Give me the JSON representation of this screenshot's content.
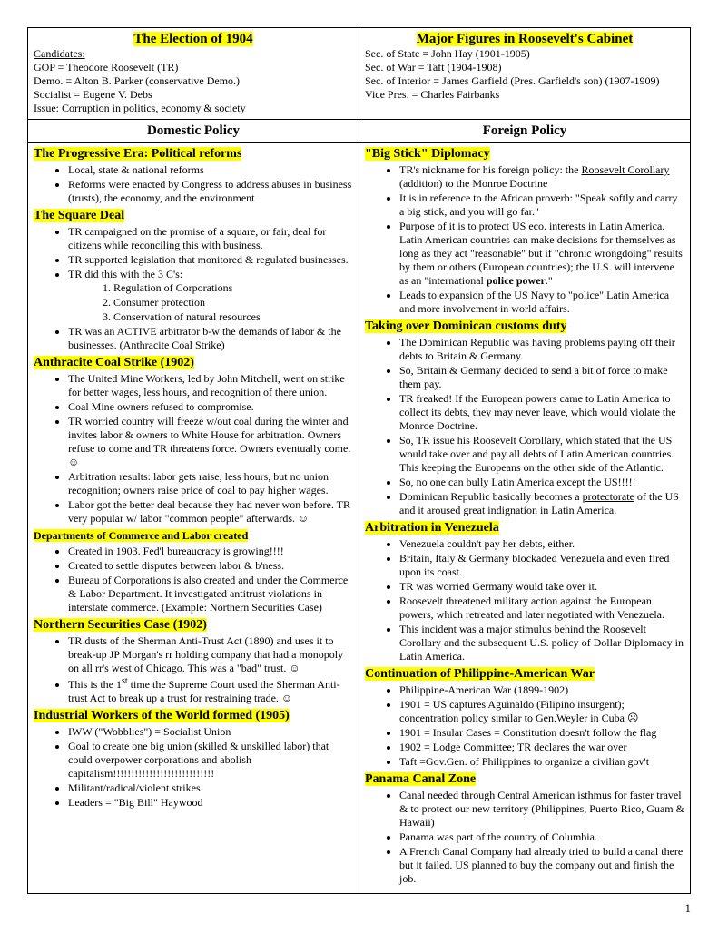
{
  "topLeft": {
    "title": "The Election of 1904",
    "candidatesLabel": "Candidates:",
    "gop": "GOP = Theodore Roosevelt (TR)",
    "demo": "Demo. = Alton B. Parker (conservative Demo.)",
    "socialist": "Socialist = Eugene V. Debs",
    "issueLabel": "Issue:",
    "issueText": " Corruption in politics, economy & society"
  },
  "topRight": {
    "title": "Major Figures in Roosevelt's Cabinet",
    "l1": "Sec. of State = John Hay (1901-1905)",
    "l2": "Sec. of War = Taft (1904-1908)",
    "l3": "Sec. of Interior = James Garfield (Pres. Garfield's son) (1907-1909)",
    "l4": "Vice Pres. = Charles Fairbanks"
  },
  "domesticTitle": "Domestic Policy",
  "foreignTitle": "Foreign Policy",
  "domestic": {
    "progressive": {
      "title": "The Progressive Era: Political reforms",
      "b1": "Local, state & national reforms",
      "b2": "Reforms were enacted by Congress to address abuses in business (trusts), the economy, and the environment"
    },
    "squareDeal": {
      "title": "The Square Deal",
      "b1": "TR campaigned on the promise of a square, or fair, deal for citizens while reconciling this with business.",
      "b2": "TR supported legislation that monitored & regulated businesses.",
      "b3": "TR did this with the 3 C's:",
      "c1": "Regulation of Corporations",
      "c2": "Consumer protection",
      "c3": "Conservation of natural resources",
      "b4": "TR was an ACTIVE arbitrator b-w the demands of labor & the businesses. (Anthracite Coal Strike)"
    },
    "coalStrike": {
      "title": "Anthracite Coal Strike (1902)",
      "b1": "The United Mine Workers, led by John Mitchell, went on strike for better wages, less hours, and recognition of there union.",
      "b2": "Coal Mine owners refused to compromise.",
      "b3": "TR worried country will freeze w/out coal during the winter and invites labor & owners to White House for arbitration.  Owners refuse to come and TR threatens force.  Owners eventually come. ☺",
      "b4": "Arbitration results: labor gets raise, less hours, but no union recognition; owners raise price of coal to pay higher wages.",
      "b5": "Labor got the better deal because they had never won before. TR very popular w/ labor \"common people\" afterwards. ☺"
    },
    "commerce": {
      "title": "Departments of Commerce and Labor created",
      "b1": "Created in 1903. Fed'l bureaucracy is growing!!!!",
      "b2": "Created to settle disputes between labor & b'ness.",
      "b3": "Bureau of Corporations is also created and under the Commerce & Labor Department.  It investigated antitrust violations in interstate commerce. (Example: Northern Securities Case)"
    },
    "northern": {
      "title": "Northern Securities Case (1902)",
      "b1": "TR dusts of the Sherman Anti-Trust Act (1890) and uses it to break-up JP Morgan's rr holding company that had a monopoly on all rr's west of Chicago.  This was a \"bad\" trust. ☺",
      "b2pre": "This is the 1",
      "b2sup": "st",
      "b2post": " time the Supreme Court used the Sherman Anti-trust Act to break up a trust for restraining trade. ☺"
    },
    "iww": {
      "title": "Industrial Workers of the World formed (1905)",
      "b1": "IWW (\"Wobblies\") = Socialist Union",
      "b2": "Goal to create one big union (skilled & unskilled labor) that could overpower corporations and abolish capitalism!!!!!!!!!!!!!!!!!!!!!!!!!!!!",
      "b3": "Militant/radical/violent strikes",
      "b4": "Leaders = \"Big Bill\" Haywood"
    }
  },
  "foreign": {
    "bigStick": {
      "title": "\"Big Stick\" Diplomacy",
      "b1pre": "TR's nickname for his foreign policy: the ",
      "b1u": "Roosevelt Corollary",
      "b1post": " (addition) to the Monroe Doctrine",
      "b2": "It is in reference to the African proverb: \"Speak softly and carry a big stick, and you will go far.\"",
      "b3pre": "Purpose of it is to protect US eco. interests in Latin America.  Latin American countries can make decisions for themselves as long as they act \"reasonable\" but if \"chronic wrongdoing\" results by them or others (European countries); the U.S. will intervene as an \"international ",
      "b3bold": "police power",
      "b3post": ".\"",
      "b4": "Leads to expansion of the US Navy to \"police\" Latin America and more involvement in world affairs."
    },
    "dominican": {
      "title": "Taking over Dominican customs duty",
      "b1": "The Dominican Republic was having problems paying off their debts to Britain & Germany.",
      "b2": "So, Britain & Germany decided to send a bit of force to make them pay.",
      "b3": "TR freaked! If the European powers came to Latin America to collect its debts, they may never leave, which would violate the Monroe Doctrine.",
      "b4": "So, TR issue his Roosevelt Corollary, which stated that the US would take over and pay all debts of Latin American countries. This keeping the Europeans on the other side of the Atlantic.",
      "b5": "So, no one can bully Latin America except the US!!!!!",
      "b6pre": "Dominican Republic basically becomes a ",
      "b6u": "protectorate",
      "b6post": " of the US and it aroused great indignation in Latin America."
    },
    "venezuela": {
      "title": "Arbitration in Venezuela",
      "b1": "Venezuela couldn't pay her debts, either.",
      "b2": "Britain, Italy & Germany blockaded Venezuela and even fired upon its coast.",
      "b3": "TR was worried Germany would take over it.",
      "b4": "Roosevelt threatened military action against the European powers, which retreated and later negotiated with Venezuela.",
      "b5": "This incident was a major stimulus behind the Roosevelt Corollary and the subsequent U.S. policy of Dollar Diplomacy in Latin America."
    },
    "philippine": {
      "title": "Continuation of Philippine-American War",
      "b1": "Philippine-American War (1899-1902)",
      "b2": "1901 = US captures Aguinaldo (Filipino insurgent); concentration policy similar to Gen.Weyler in Cuba ☹",
      "b3": "1901 = Insular Cases = Constitution doesn't follow the flag",
      "b4": "1902 = Lodge Committee; TR declares the war over",
      "b5": "Taft =Gov.Gen. of Philippines to organize a civilian gov't"
    },
    "panama": {
      "title": "Panama Canal Zone",
      "b1": "Canal needed through Central American isthmus for faster travel & to protect our new territory (Philippines, Puerto Rico, Guam & Hawaii)",
      "b2": "Panama was part of the country of Columbia.",
      "b3": "A French Canal Company had already tried to build a canal there but it failed. US planned to buy the company out and finish the job."
    }
  },
  "pageNum": "1"
}
